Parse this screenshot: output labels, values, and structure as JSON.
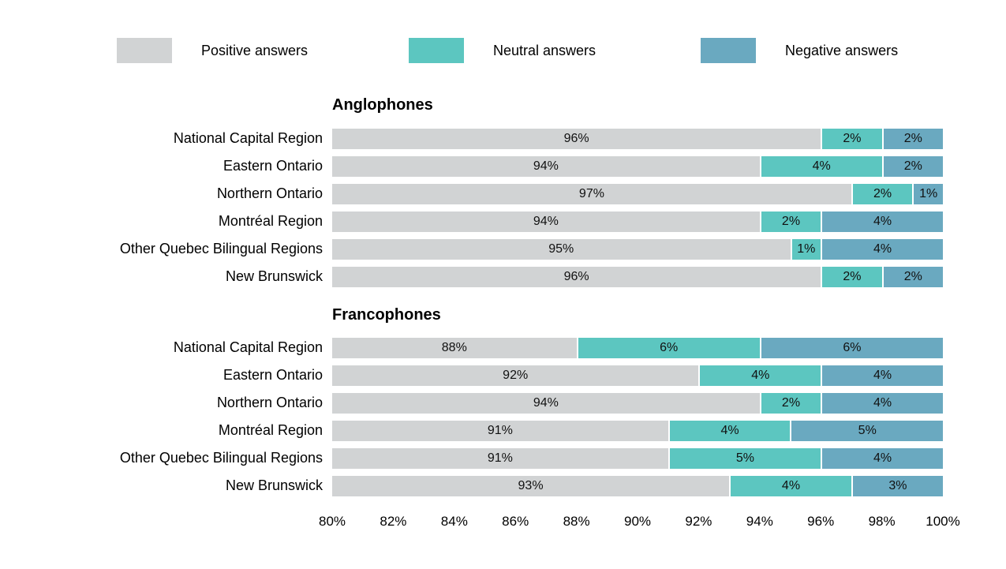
{
  "legend": {
    "items": [
      {
        "label": "Positive answers",
        "color": "#d1d3d4"
      },
      {
        "label": "Neutral answers",
        "color": "#5cc6c0"
      },
      {
        "label": "Negative answers",
        "color": "#6aa9c0"
      }
    ]
  },
  "chart_data": {
    "type": "bar",
    "orientation": "horizontal",
    "stacked": true,
    "value_unit": "%",
    "xlim": [
      80,
      100
    ],
    "x_ticks": [
      "80%",
      "82%",
      "84%",
      "86%",
      "88%",
      "90%",
      "92%",
      "94%",
      "96%",
      "98%",
      "100%"
    ],
    "grid": false,
    "legend_position": "top",
    "series_names": [
      "Positive answers",
      "Neutral answers",
      "Negative answers"
    ],
    "colors": [
      "#d1d3d4",
      "#5cc6c0",
      "#6aa9c0"
    ],
    "note": "Positive segment drawn from 80% axis origin to its value; neutral and negative segments stack to 100%.",
    "sections": [
      {
        "title": "Anglophones",
        "rows": [
          {
            "label": "National Capital Region",
            "values": [
              96,
              2,
              2
            ]
          },
          {
            "label": "Eastern Ontario",
            "values": [
              94,
              4,
              2
            ]
          },
          {
            "label": "Northern Ontario",
            "values": [
              97,
              2,
              1
            ]
          },
          {
            "label": "Montréal Region",
            "values": [
              94,
              2,
              4
            ]
          },
          {
            "label": "Other Quebec Bilingual Regions",
            "values": [
              95,
              1,
              4
            ]
          },
          {
            "label": "New Brunswick",
            "values": [
              96,
              2,
              2
            ]
          }
        ]
      },
      {
        "title": "Francophones",
        "rows": [
          {
            "label": "National Capital Region",
            "values": [
              88,
              6,
              6
            ]
          },
          {
            "label": "Eastern Ontario",
            "values": [
              92,
              4,
              4
            ]
          },
          {
            "label": "Northern Ontario",
            "values": [
              94,
              2,
              4
            ]
          },
          {
            "label": "Montréal Region",
            "values": [
              91,
              4,
              5
            ]
          },
          {
            "label": "Other Quebec Bilingual Regions",
            "values": [
              91,
              5,
              4
            ]
          },
          {
            "label": "New Brunswick",
            "values": [
              93,
              4,
              3
            ]
          }
        ]
      }
    ]
  }
}
